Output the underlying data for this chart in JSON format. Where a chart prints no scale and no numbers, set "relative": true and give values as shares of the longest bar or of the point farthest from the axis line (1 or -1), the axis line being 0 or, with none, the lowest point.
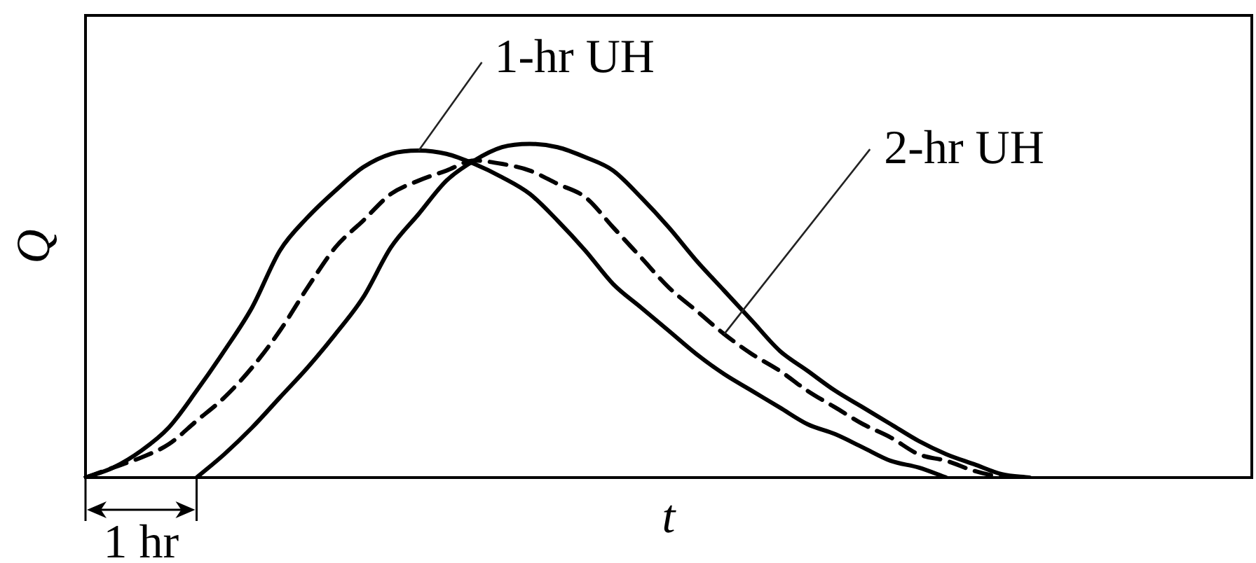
{
  "chart_data": {
    "type": "line",
    "relative": true,
    "xlabel": "t",
    "ylabel": "Q",
    "annotations": [
      "1 hr"
    ],
    "marker": "none",
    "categories": [
      null,
      null,
      null,
      null,
      null,
      null,
      null,
      null,
      null,
      null,
      null,
      null,
      null,
      null,
      null,
      null,
      null,
      null,
      null,
      null,
      null,
      null,
      null,
      null,
      null,
      null,
      null,
      null,
      null,
      null,
      null,
      null,
      null,
      null,
      null,
      null,
      null,
      null,
      null,
      null,
      null,
      null,
      null
    ],
    "series": [
      {
        "name": "1-hr UH",
        "color": "#000000",
        "line_style": "solid",
        "values": [
          0,
          0.03,
          0.08,
          0.15,
          0.26,
          0.38,
          0.51,
          0.68,
          0.78,
          0.86,
          0.93,
          0.97,
          0.98,
          0.97,
          0.94,
          0.9,
          0.85,
          0.77,
          0.68,
          0.58,
          0.51,
          0.44,
          0.37,
          0.31,
          0.26,
          0.21,
          0.16,
          0.13,
          0.09,
          0.05,
          0.03,
          0,
          null,
          null,
          null,
          null,
          null,
          null,
          null,
          null,
          null,
          null,
          null
        ]
      },
      {
        "color": "#000000",
        "line_style": "solid",
        "values": [
          null,
          null,
          null,
          null,
          0,
          0.07,
          0.15,
          0.24,
          0.33,
          0.43,
          0.54,
          0.69,
          0.79,
          0.89,
          0.95,
          0.99,
          1,
          0.99,
          0.96,
          0.92,
          0.84,
          0.75,
          0.65,
          0.56,
          0.47,
          0.38,
          0.32,
          0.26,
          0.21,
          0.16,
          0.11,
          0.07,
          0.04,
          0.01,
          0,
          null,
          null,
          null,
          null,
          null,
          null,
          null,
          null
        ]
      },
      {
        "name": "2-hr UH",
        "color": "#000000",
        "line_style": "dashed",
        "values": [
          0,
          0.03,
          0.06,
          0.1,
          0.17,
          0.24,
          0.33,
          0.44,
          0.57,
          0.69,
          0.77,
          0.85,
          0.89,
          0.92,
          0.95,
          0.94,
          0.92,
          0.88,
          0.84,
          0.75,
          0.66,
          0.57,
          0.5,
          0.43,
          0.37,
          0.32,
          0.26,
          0.21,
          0.16,
          0.12,
          0.07,
          0.05,
          0.02,
          0,
          null,
          null,
          null,
          null,
          null,
          null,
          null,
          null,
          null
        ]
      }
    ]
  }
}
